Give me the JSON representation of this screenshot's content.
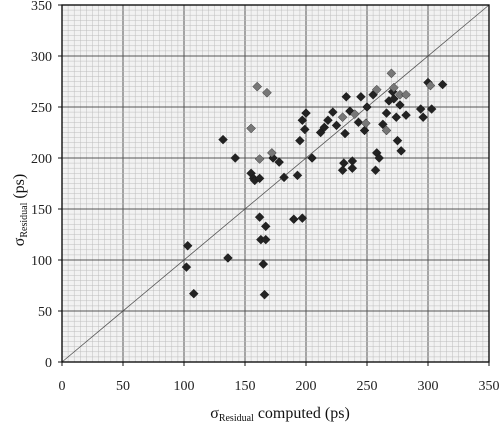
{
  "chart_data": {
    "type": "scatter",
    "title": "",
    "xlabel": {
      "symbol": "σ",
      "subscript": "Residual",
      "suffix": " computed (ps)"
    },
    "ylabel": {
      "symbol": "σ",
      "subscript": "Residual",
      "suffix": " (ps)"
    },
    "xlim": [
      0,
      350
    ],
    "ylim": [
      0,
      350
    ],
    "xticks": [
      "0",
      "50",
      "100",
      "150",
      "200",
      "250",
      "300",
      "350"
    ],
    "yticks": [
      "0",
      "50",
      "100",
      "150",
      "200",
      "250",
      "300",
      "350"
    ],
    "grid": true,
    "reference_line": "y = x",
    "legend": "none",
    "colors": {
      "dark_marker": "#222222",
      "light_marker": "#777777",
      "major_grid": "#555555",
      "minor_grid": "#bdbdbd"
    },
    "series": [
      {
        "marker": "diamond",
        "color": "dark",
        "points": [
          [
            102,
            93
          ],
          [
            103,
            114
          ],
          [
            108,
            67
          ],
          [
            132,
            218
          ],
          [
            136,
            102
          ],
          [
            142,
            200
          ],
          [
            155,
            185
          ],
          [
            157,
            180
          ],
          [
            158,
            178
          ],
          [
            162,
            180
          ],
          [
            162,
            142
          ],
          [
            163,
            120
          ],
          [
            165,
            96
          ],
          [
            167,
            133
          ],
          [
            167,
            120
          ],
          [
            166,
            66
          ],
          [
            173,
            200
          ],
          [
            178,
            196
          ],
          [
            182,
            181
          ],
          [
            190,
            140
          ],
          [
            193,
            183
          ],
          [
            197,
            141
          ],
          [
            195,
            217
          ],
          [
            197,
            237
          ],
          [
            199,
            228
          ],
          [
            200,
            244
          ],
          [
            205,
            200
          ],
          [
            212,
            225
          ],
          [
            215,
            230
          ],
          [
            218,
            237
          ],
          [
            222,
            245
          ],
          [
            225,
            232
          ],
          [
            230,
            188
          ],
          [
            231,
            195
          ],
          [
            232,
            224
          ],
          [
            233,
            260
          ],
          [
            236,
            246
          ],
          [
            238,
            197
          ],
          [
            238,
            190
          ],
          [
            243,
            235
          ],
          [
            245,
            260
          ],
          [
            248,
            227
          ],
          [
            250,
            250
          ],
          [
            255,
            262
          ],
          [
            257,
            188
          ],
          [
            258,
            205
          ],
          [
            260,
            200
          ],
          [
            263,
            233
          ],
          [
            266,
            244
          ],
          [
            268,
            256
          ],
          [
            271,
            265
          ],
          [
            272,
            258
          ],
          [
            274,
            240
          ],
          [
            275,
            217
          ],
          [
            277,
            252
          ],
          [
            278,
            207
          ],
          [
            282,
            242
          ],
          [
            294,
            248
          ],
          [
            296,
            240
          ],
          [
            300,
            274
          ],
          [
            303,
            248
          ],
          [
            312,
            272
          ]
        ]
      },
      {
        "marker": "diamond",
        "color": "light",
        "points": [
          [
            160,
            270
          ],
          [
            168,
            264
          ],
          [
            162,
            199
          ],
          [
            155,
            229
          ],
          [
            172,
            205
          ],
          [
            270,
            283
          ],
          [
            272,
            269
          ],
          [
            277,
            262
          ],
          [
            240,
            243
          ],
          [
            249,
            234
          ],
          [
            258,
            267
          ],
          [
            266,
            227
          ],
          [
            282,
            262
          ],
          [
            302,
            271
          ],
          [
            230,
            240
          ]
        ]
      }
    ]
  }
}
